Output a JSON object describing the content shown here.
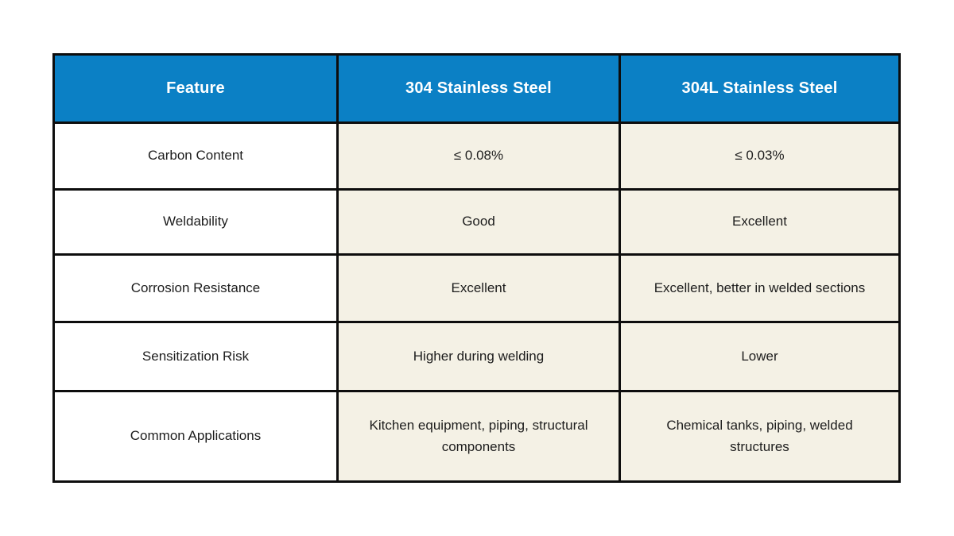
{
  "colors": {
    "header_bg": "#0b80c5",
    "header_text": "#ffffff",
    "cell_bg": "#f4f1e5",
    "feature_bg": "#ffffff",
    "border": "#0d0d0d",
    "body_text": "#1d1d1d"
  },
  "chart_data": {
    "type": "table",
    "title": "",
    "columns": [
      "Feature",
      "304 Stainless Steel",
      "304L Stainless Steel"
    ],
    "rows": [
      [
        "Carbon Content",
        "≤ 0.08%",
        "≤ 0.03%"
      ],
      [
        "Weldability",
        "Good",
        "Excellent"
      ],
      [
        "Corrosion Resistance",
        "Excellent",
        "Excellent, better in welded sections"
      ],
      [
        "Sensitization Risk",
        "Higher during welding",
        "Lower"
      ],
      [
        "Common Applications",
        "Kitchen equipment, piping, structural components",
        "Chemical tanks, piping, welded structures"
      ]
    ],
    "layout_hints": {
      "header_style": "blue background, white bold text",
      "feature_column_bg": "white",
      "value_columns_bg": "cream",
      "grid": "heavy black borders",
      "text_align": "center"
    }
  }
}
